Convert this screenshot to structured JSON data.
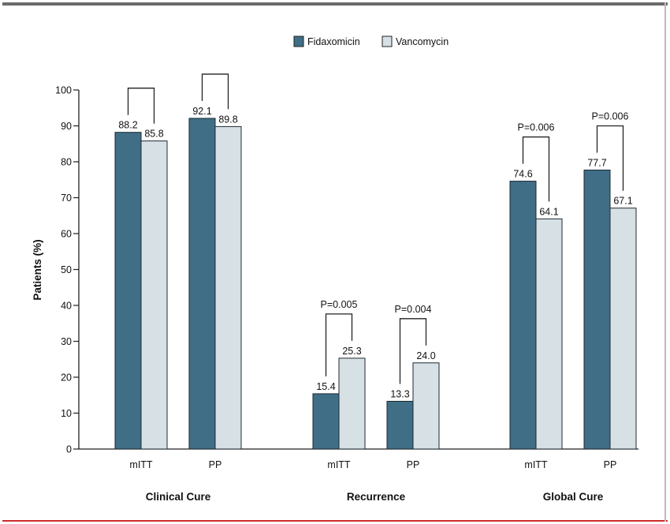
{
  "chart_data": {
    "type": "bar",
    "title": "",
    "ylabel": "Patients (%)",
    "ylim": [
      0,
      100
    ],
    "yticks": [
      "0",
      "10",
      "20",
      "30",
      "40",
      "50",
      "60",
      "70",
      "80",
      "90",
      "100"
    ],
    "legend": {
      "position": "top",
      "entries": [
        "Fidaxomicin",
        "Vancomycin"
      ]
    },
    "colors": {
      "Fidaxomicin": "#3f6e86",
      "Vancomycin": "#d6e0e5"
    },
    "groups": [
      {
        "label": "Clinical Cure",
        "subgroups": [
          {
            "label": "mITT",
            "Fidaxomicin": 88.2,
            "Vancomycin": 85.8,
            "fid_label": "88.2",
            "van_label": "85.8",
            "p_label": ""
          },
          {
            "label": "PP",
            "Fidaxomicin": 92.1,
            "Vancomycin": 89.8,
            "fid_label": "92.1",
            "van_label": "89.8",
            "p_label": ""
          }
        ]
      },
      {
        "label": "Recurrence",
        "subgroups": [
          {
            "label": "mITT",
            "Fidaxomicin": 15.4,
            "Vancomycin": 25.3,
            "fid_label": "15.4",
            "van_label": "25.3",
            "p_label": "P=0.005"
          },
          {
            "label": "PP",
            "Fidaxomicin": 13.3,
            "Vancomycin": 24.0,
            "fid_label": "13.3",
            "van_label": "24.0",
            "p_label": "P=0.004"
          }
        ]
      },
      {
        "label": "Global Cure",
        "subgroups": [
          {
            "label": "mITT",
            "Fidaxomicin": 74.6,
            "Vancomycin": 64.1,
            "fid_label": "74.6",
            "van_label": "64.1",
            "p_label": "P=0.006"
          },
          {
            "label": "PP",
            "Fidaxomicin": 77.7,
            "Vancomycin": 67.1,
            "fid_label": "77.7",
            "van_label": "67.1",
            "p_label": "P=0.006"
          }
        ]
      }
    ]
  }
}
